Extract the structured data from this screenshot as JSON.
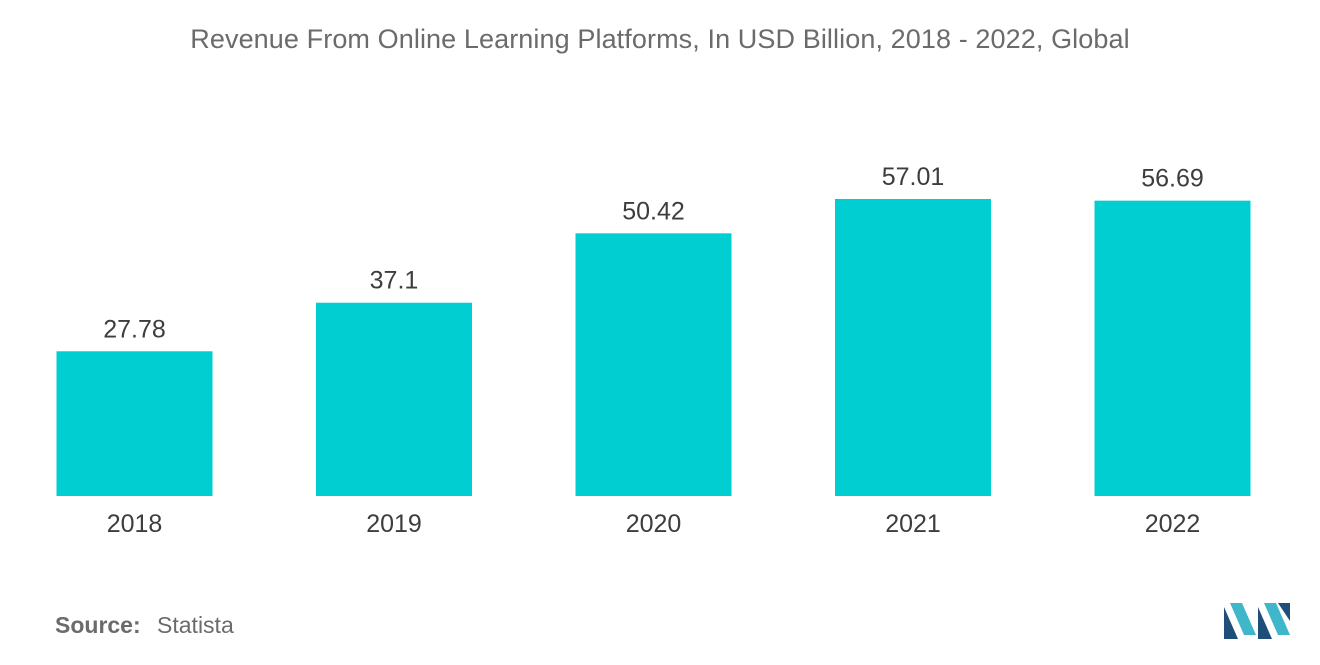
{
  "chart_data": {
    "type": "bar",
    "title": "Revenue From Online Learning Platforms, In USD Billion, 2018 - 2022, Global",
    "xlabel": "",
    "ylabel": "",
    "categories": [
      "2018",
      "2019",
      "2020",
      "2021",
      "2022"
    ],
    "values": [
      27.78,
      37.1,
      50.42,
      57.01,
      56.69
    ],
    "data_labels": [
      "27.78",
      "37.1",
      "50.42",
      "57.01",
      "56.69"
    ],
    "ylim": [
      0,
      57.01
    ],
    "grid": false,
    "legend": "none",
    "bar_color": "#00CED1"
  },
  "source": {
    "label": "Source:",
    "value": "Statista"
  },
  "logo": {
    "icon": "mordor-intelligence-logo-icon",
    "colors": [
      "#1F4E79",
      "#3FB6C9"
    ]
  }
}
